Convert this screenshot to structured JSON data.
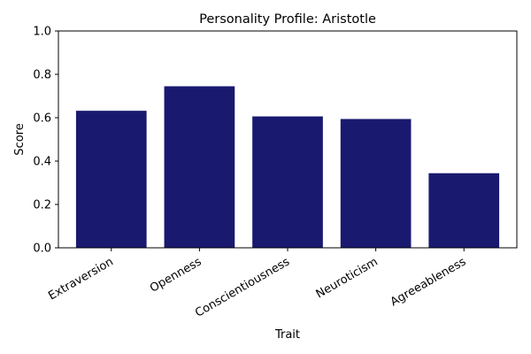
{
  "chart_data": {
    "type": "bar",
    "title": "Personality Profile: Aristotle",
    "xlabel": "Trait",
    "ylabel": "Score",
    "categories": [
      "Extraversion",
      "Openness",
      "Conscientiousness",
      "Neuroticism",
      "Agreeableness"
    ],
    "values": [
      0.632,
      0.745,
      0.606,
      0.594,
      0.344
    ],
    "ylim": [
      0,
      1.0
    ],
    "yticks": [
      "0.0",
      "0.2",
      "0.4",
      "0.6",
      "0.8",
      "1.0"
    ],
    "bar_color": "#191970",
    "grid": false,
    "legend": "none"
  }
}
